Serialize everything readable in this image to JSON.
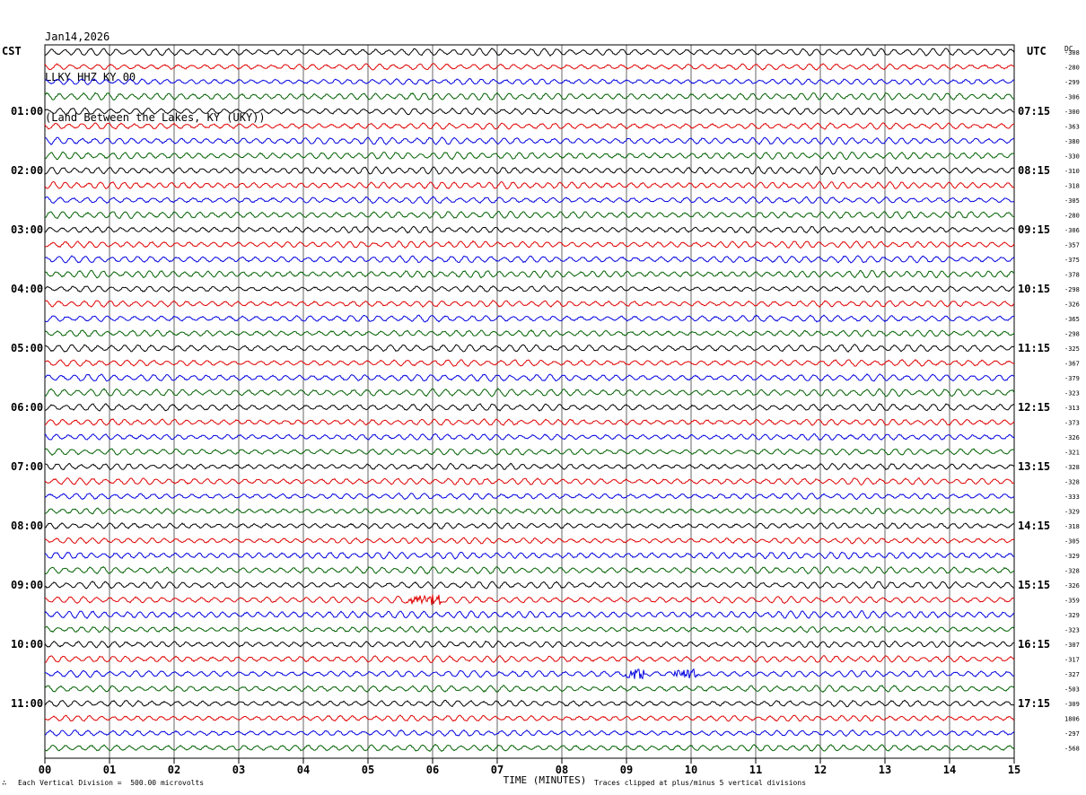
{
  "header": {
    "date": "Jan14,2026",
    "station": "LLKY HHZ KY 00",
    "location": "(Land Between the Lakes, KY (UKY))"
  },
  "left_axis_title": "CST",
  "right_axis_title": "UTC",
  "dc_label": "DC",
  "footer": {
    "scale_note": "Each Vertical Division =  500.00 microvolts",
    "clip_note": "Traces clipped at plus/minus 5 vertical divisions",
    "mark": "∴"
  },
  "colors": {
    "trace_cycle": [
      "#000000",
      "#e00000",
      "#0000e0",
      "#006000"
    ],
    "grid": "#000000",
    "background": "#ffffff"
  },
  "chart_data": {
    "type": "helicorder",
    "xlabel": "TIME (MINUTES)",
    "x_ticks": [
      "00",
      "01",
      "02",
      "03",
      "04",
      "05",
      "06",
      "07",
      "08",
      "09",
      "10",
      "11",
      "12",
      "13",
      "14",
      "15"
    ],
    "xlim": [
      0,
      15
    ],
    "line_count": 48,
    "minutes_per_line": 15,
    "left_hour_labels": [
      "01:00",
      "02:00",
      "03:00",
      "04:00",
      "05:00",
      "06:00",
      "07:00",
      "08:00",
      "09:00",
      "10:00",
      "11:00"
    ],
    "right_hour_labels": [
      "07:15",
      "08:15",
      "09:15",
      "10:15",
      "11:15",
      "12:15",
      "13:15",
      "14:15",
      "15:15",
      "16:15",
      "17:15"
    ],
    "dc_offsets": [
      "-308",
      "-280",
      "-299",
      "-306",
      "-300",
      "-363",
      "-380",
      "-330",
      "-310",
      "-318",
      "-305",
      "-280",
      "-306",
      "-357",
      "-375",
      "-378",
      "-298",
      "-326",
      "-365",
      "-298",
      "-325",
      "-367",
      "-379",
      "-323",
      "-313",
      "-373",
      "-326",
      "-321",
      "-328",
      "-328",
      "-333",
      "-329",
      "-318",
      "-305",
      "-329",
      "-328",
      "-326",
      "-359",
      "-329",
      "-323",
      "-307",
      "-317",
      "-327",
      "-503",
      "-309",
      "1806",
      "-297",
      "-568"
    ],
    "events": [
      {
        "line": 37,
        "minute_start": 5.6,
        "minute_end": 6.15
      },
      {
        "line": 42,
        "minute_start": 9.0,
        "minute_end": 9.3
      },
      {
        "line": 42,
        "minute_start": 9.75,
        "minute_end": 10.1
      }
    ]
  }
}
